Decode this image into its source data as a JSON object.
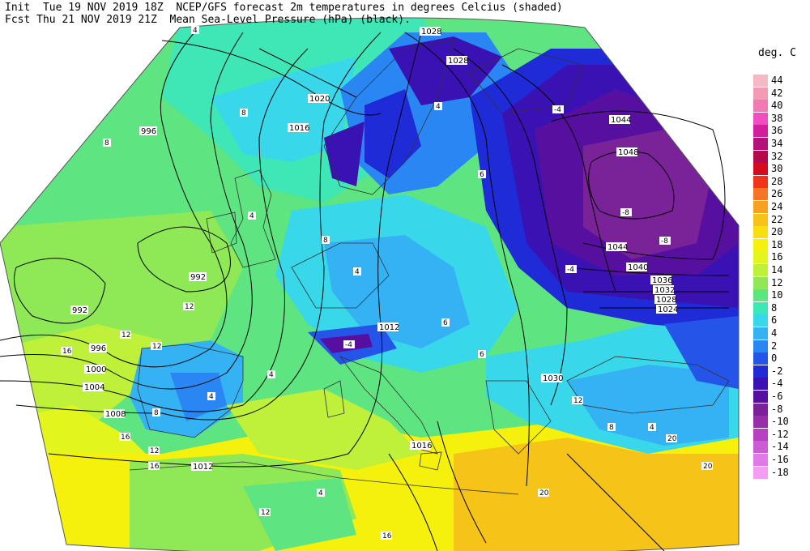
{
  "header": {
    "line1": "Init  Tue 19 NOV 2019 18Z  NCEP/GFS forecast 2m temperatures in degrees Celcius (shaded)",
    "line2": "Fcst Thu 21 NOV 2019 21Z  Mean Sea-Level Pressure (hPa) (black)."
  },
  "legend": {
    "title": "deg. C",
    "items": [
      {
        "label": "44",
        "color": "#f4b9c4"
      },
      {
        "label": "42",
        "color": "#f29bb5"
      },
      {
        "label": "40",
        "color": "#f27ab4"
      },
      {
        "label": "38",
        "color": "#ef4ec0"
      },
      {
        "label": "36",
        "color": "#d21f9c"
      },
      {
        "label": "34",
        "color": "#b21279"
      },
      {
        "label": "32",
        "color": "#b40a4c"
      },
      {
        "label": "30",
        "color": "#d80a1e"
      },
      {
        "label": "28",
        "color": "#f2321a"
      },
      {
        "label": "26",
        "color": "#f57524"
      },
      {
        "label": "24",
        "color": "#f6a21f"
      },
      {
        "label": "22",
        "color": "#f6c318"
      },
      {
        "label": "20",
        "color": "#f9de10"
      },
      {
        "label": "18",
        "color": "#f6f10c"
      },
      {
        "label": "16",
        "color": "#e2f51c"
      },
      {
        "label": "14",
        "color": "#bff03a"
      },
      {
        "label": "12",
        "color": "#8fe856"
      },
      {
        "label": "10",
        "color": "#5ee481"
      },
      {
        "label": "8",
        "color": "#3fe6b6"
      },
      {
        "label": "6",
        "color": "#38d8ea"
      },
      {
        "label": "4",
        "color": "#35b2f4"
      },
      {
        "label": "2",
        "color": "#2a86f2"
      },
      {
        "label": "0",
        "color": "#2555e8"
      },
      {
        "label": "-2",
        "color": "#1f2bd6"
      },
      {
        "label": "-4",
        "color": "#3a12b4"
      },
      {
        "label": "-6",
        "color": "#560f9f"
      },
      {
        "label": "-8",
        "color": "#7a2399"
      },
      {
        "label": "-10",
        "color": "#9a2ea8"
      },
      {
        "label": "-12",
        "color": "#b640bf"
      },
      {
        "label": "-14",
        "color": "#cc5cd4"
      },
      {
        "label": "-16",
        "color": "#e07ae6"
      },
      {
        "label": "-18",
        "color": "#f29ef2"
      }
    ]
  },
  "map": {
    "isobar_labels": [
      "1028",
      "1028",
      "1020",
      "1016",
      "996",
      "992",
      "992",
      "996",
      "1000",
      "1004",
      "1008",
      "1012",
      "1012",
      "1016",
      "1044",
      "1048",
      "1044",
      "1040",
      "1036",
      "1032",
      "1028",
      "1024",
      "1030"
    ],
    "temperature_labels": [
      "4",
      "8",
      "8",
      "8",
      "4",
      "4",
      "6",
      "4",
      "-4",
      "-8",
      "-8",
      "-4",
      "12",
      "12",
      "16",
      "12",
      "4",
      "6",
      "4",
      "6",
      "8",
      "8",
      "4",
      "-4",
      "16",
      "12",
      "12",
      "16",
      "20",
      "12",
      "16",
      "4",
      "20",
      "20"
    ]
  }
}
